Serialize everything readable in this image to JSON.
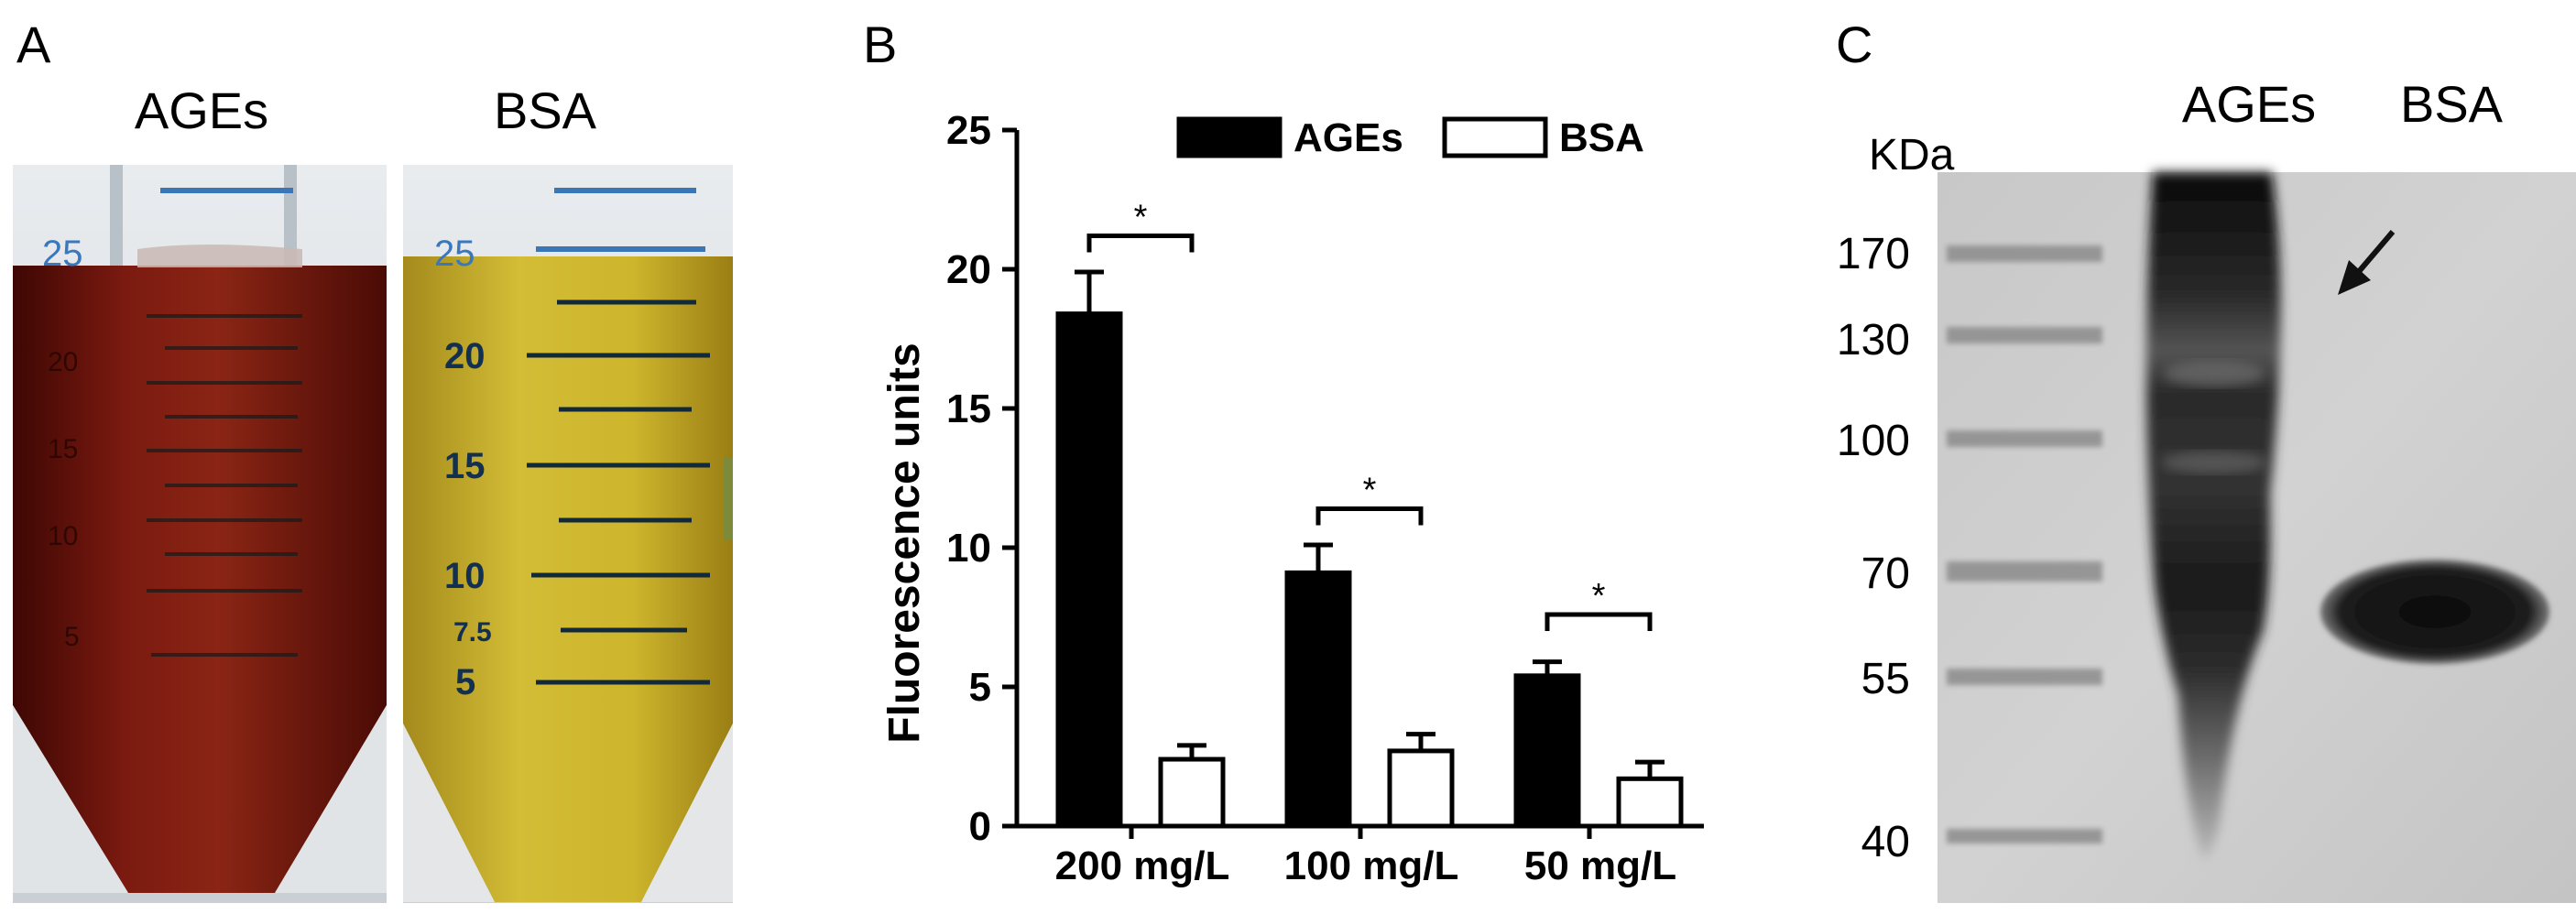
{
  "panels": {
    "a": {
      "letter": "A",
      "tube_labels": [
        "AGEs",
        "BSA"
      ],
      "ages_tube_marks": [
        "25",
        "20",
        "15",
        "10",
        "5"
      ],
      "bsa_tube_marks": [
        "25",
        "20",
        "15",
        "10",
        "7.5",
        "5"
      ]
    },
    "b": {
      "letter": "B",
      "significance_mark": "*"
    },
    "c": {
      "letter": "C",
      "unit_label": "KDa",
      "lane_labels": [
        "AGEs",
        "BSA"
      ],
      "marker_values": [
        "170",
        "130",
        "100",
        "70",
        "55",
        "40"
      ]
    }
  },
  "chart_data": {
    "type": "bar",
    "title": "",
    "xlabel": "",
    "ylabel": "Fluorescence units",
    "categories": [
      "200 mg/L",
      "100 mg/L",
      "50 mg/L"
    ],
    "series": [
      {
        "name": "AGEs",
        "values": [
          18.4,
          9.1,
          5.4
        ],
        "errors": [
          1.5,
          1.0,
          0.5
        ],
        "color": "#000000"
      },
      {
        "name": "BSA",
        "values": [
          2.4,
          2.7,
          1.7
        ],
        "errors": [
          0.5,
          0.6,
          0.6
        ],
        "color": "#ffffff"
      }
    ],
    "ylim": [
      0,
      25
    ],
    "yticks": [
      0,
      5,
      10,
      15,
      20,
      25
    ],
    "significance": [
      {
        "category": "200 mg/L",
        "label": "*",
        "bracket_y": 21.2
      },
      {
        "category": "100 mg/L",
        "label": "*",
        "bracket_y": 11.4
      },
      {
        "category": "50 mg/L",
        "label": "*",
        "bracket_y": 7.6
      }
    ],
    "legend": "top",
    "grid": false
  },
  "colors": {
    "ages_liquid": "#7a160e",
    "bsa_liquid": "#cdb52c",
    "gel_background": "#cfcfcf",
    "band": "#161616"
  }
}
